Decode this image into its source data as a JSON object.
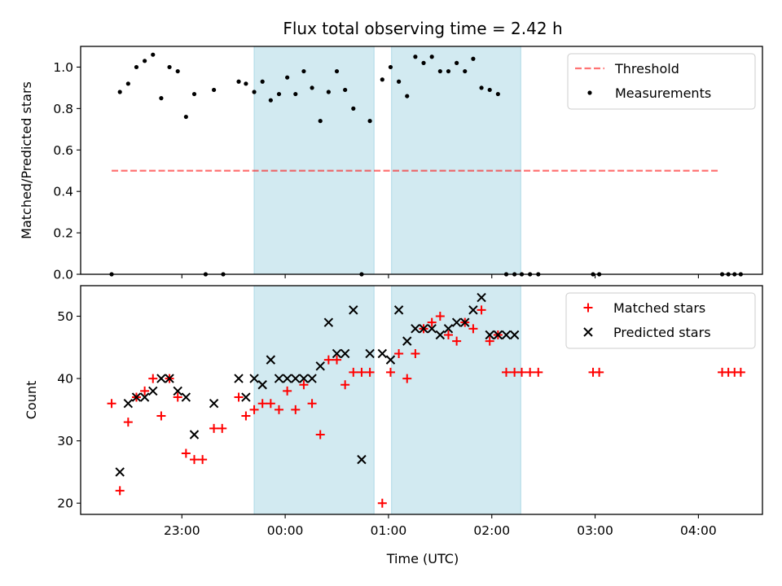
{
  "chart_data": {
    "title": "Flux total observing time = 2.42 h",
    "xlabel": "Time (UTC)",
    "x_unit": "hours (UTC clock, values past midnight continue above 24)",
    "xlim": [
      22.02,
      28.62
    ],
    "xticks": [
      {
        "value": 23,
        "label": "23:00"
      },
      {
        "value": 24,
        "label": "00:00"
      },
      {
        "value": 25,
        "label": "01:00"
      },
      {
        "value": 26,
        "label": "02:00"
      },
      {
        "value": 27,
        "label": "03:00"
      },
      {
        "value": 28,
        "label": "04:00"
      }
    ],
    "shaded_spans": [
      {
        "start": 23.7,
        "end": 24.86,
        "color": "#add8e6"
      },
      {
        "start": 25.03,
        "end": 26.28,
        "color": "#add8e6"
      }
    ],
    "panels": [
      {
        "type": "scatter",
        "ylabel": "Matched/Predicted stars",
        "ylim": [
          0,
          1.1
        ],
        "yticks": [
          0.0,
          0.2,
          0.4,
          0.6,
          0.8,
          1.0
        ],
        "ytick_labels": [
          "0.0",
          "0.2",
          "0.4",
          "0.6",
          "0.8",
          "1.0"
        ],
        "legend_position": "top-right",
        "series": [
          {
            "name": "Threshold",
            "kind": "hline",
            "color": "#ff0000",
            "y": 0.5,
            "x": [
              22.32,
              28.2
            ]
          },
          {
            "name": "Measurements",
            "kind": "dots",
            "color": "#000000",
            "x": [
              22.32,
              22.4,
              22.48,
              22.56,
              22.64,
              22.72,
              22.8,
              22.88,
              22.96,
              23.04,
              23.12,
              23.23,
              23.31,
              23.4,
              23.55,
              23.62,
              23.7,
              23.78,
              23.86,
              23.94,
              24.02,
              24.1,
              24.18,
              24.26,
              24.34,
              24.42,
              24.5,
              24.58,
              24.66,
              24.74,
              24.82,
              24.94,
              25.02,
              25.1,
              25.18,
              25.26,
              25.34,
              25.42,
              25.5,
              25.58,
              25.66,
              25.74,
              25.82,
              25.9,
              25.98,
              26.06,
              26.14,
              26.22,
              26.29,
              26.37,
              26.45,
              26.98,
              27.04,
              28.23,
              28.29,
              28.35,
              28.41
            ],
            "y": [
              0.0,
              0.88,
              0.92,
              1.0,
              1.03,
              1.06,
              0.85,
              1.0,
              0.98,
              0.76,
              0.87,
              0.0,
              0.89,
              0.0,
              0.93,
              0.92,
              0.88,
              0.93,
              0.84,
              0.87,
              0.95,
              0.87,
              0.98,
              0.9,
              0.74,
              0.88,
              0.98,
              0.89,
              0.8,
              0.0,
              0.74,
              0.94,
              1.0,
              0.93,
              0.86,
              1.05,
              1.02,
              1.05,
              0.98,
              0.98,
              1.02,
              0.98,
              1.04,
              0.9,
              0.89,
              0.87,
              0.0,
              0.0,
              0.0,
              0.0,
              0.0,
              0.0,
              0.0,
              0.0,
              0.0,
              0.0,
              0.0
            ]
          }
        ]
      },
      {
        "type": "scatter",
        "ylabel": "Count",
        "ylim": [
          18.2,
          54.9
        ],
        "yticks": [
          20,
          30,
          40,
          50
        ],
        "ytick_labels": [
          "20",
          "30",
          "40",
          "50"
        ],
        "legend_position": "top-right",
        "series": [
          {
            "name": "Matched stars",
            "marker": "+",
            "color": "#ff0000",
            "x": [
              22.32,
              22.4,
              22.48,
              22.56,
              22.64,
              22.72,
              22.8,
              22.88,
              22.96,
              23.04,
              23.12,
              23.2,
              23.31,
              23.39,
              23.55,
              23.62,
              23.7,
              23.78,
              23.86,
              23.94,
              24.02,
              24.1,
              24.18,
              24.26,
              24.34,
              24.42,
              24.5,
              24.58,
              24.66,
              24.74,
              24.82,
              24.94,
              25.02,
              25.1,
              25.18,
              25.26,
              25.34,
              25.42,
              25.5,
              25.58,
              25.66,
              25.74,
              25.82,
              25.9,
              25.98,
              26.06,
              26.14,
              26.22,
              26.29,
              26.37,
              26.45,
              26.98,
              27.04,
              28.23,
              28.29,
              28.35,
              28.41
            ],
            "y": [
              36,
              22,
              33,
              37,
              38,
              40,
              34,
              40,
              37,
              28,
              27,
              27,
              32,
              32,
              37,
              34,
              35,
              36,
              36,
              35,
              38,
              35,
              39,
              36,
              31,
              43,
              43,
              39,
              41,
              41,
              41,
              20,
              41,
              44,
              40,
              44,
              48,
              49,
              50,
              47,
              46,
              49,
              48,
              51,
              46,
              47,
              41,
              41,
              41,
              41,
              41,
              41,
              41,
              41,
              41,
              41,
              41
            ]
          },
          {
            "name": "Predicted stars",
            "marker": "x",
            "color": "#000000",
            "x": [
              22.4,
              22.48,
              22.56,
              22.64,
              22.72,
              22.8,
              22.88,
              22.96,
              23.04,
              23.12,
              23.31,
              23.55,
              23.62,
              23.7,
              23.78,
              23.86,
              23.94,
              24.02,
              24.1,
              24.18,
              24.26,
              24.34,
              24.42,
              24.5,
              24.58,
              24.66,
              24.74,
              24.82,
              24.94,
              25.02,
              25.1,
              25.18,
              25.26,
              25.34,
              25.42,
              25.5,
              25.58,
              25.66,
              25.74,
              25.82,
              25.9,
              25.98,
              26.06,
              26.14,
              26.22
            ],
            "y": [
              25,
              36,
              37,
              37,
              38,
              40,
              40,
              38,
              37,
              31,
              36,
              40,
              37,
              40,
              39,
              43,
              40,
              40,
              40,
              40,
              40,
              42,
              49,
              44,
              44,
              51,
              27,
              44,
              44,
              43,
              51,
              46,
              48,
              48,
              48,
              47,
              48,
              49,
              49,
              51,
              53,
              47,
              47,
              47,
              47
            ]
          }
        ]
      }
    ]
  }
}
